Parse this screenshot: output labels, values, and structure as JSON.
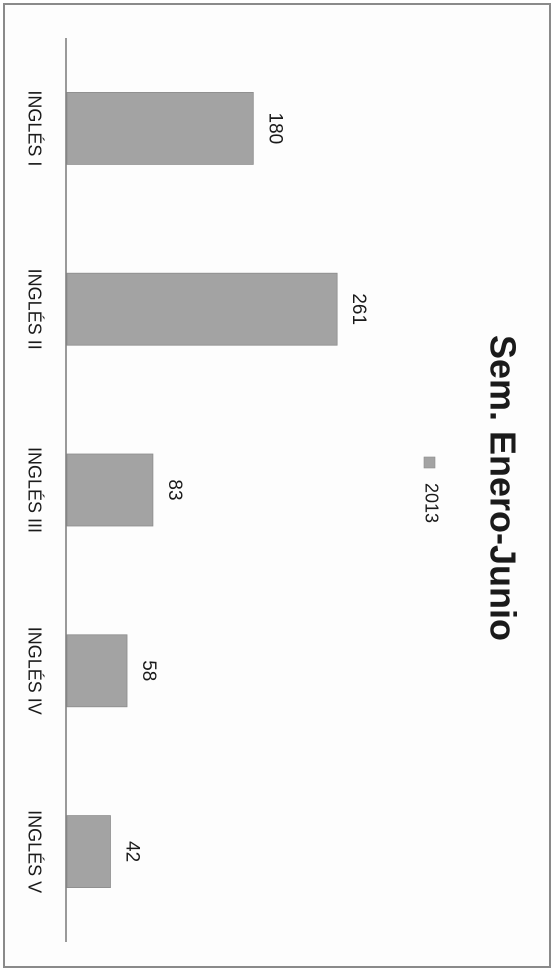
{
  "chart_data": {
    "type": "bar",
    "orientation": "rotated-90-clockwise",
    "title": "Sem. Enero-Junio",
    "categories": [
      "INGLÉS I",
      "INGLÉS II",
      "INGLÉS III",
      "INGLÉS IV",
      "INGLÉS V"
    ],
    "series": [
      {
        "name": "2013",
        "values": [
          180,
          261,
          83,
          58,
          42
        ]
      }
    ],
    "data_labels": [
      "180",
      "261",
      "83",
      "58",
      "42"
    ],
    "ylim": [
      0,
      300
    ],
    "grid": false,
    "legend_placement": "top",
    "colors": {
      "bar": "#a3a3a3",
      "bar_edge": "#8c8c8c",
      "axis": "#7a7a7a",
      "text": "#1a1a1a",
      "frame": "#8a8a8a"
    }
  }
}
